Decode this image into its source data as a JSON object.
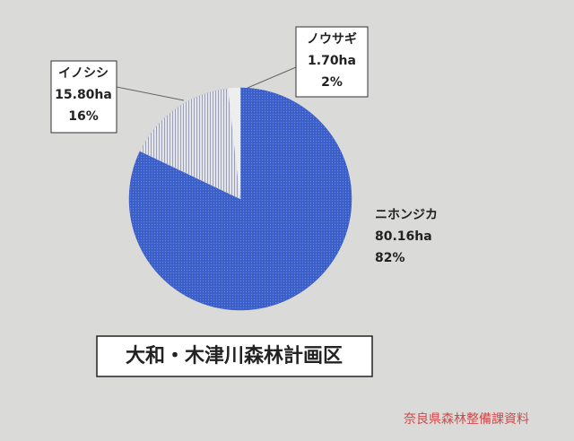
{
  "chart_data": {
    "type": "pie",
    "title": "大和・木津川森林計画区",
    "categories": [
      "ニホンジカ",
      "イノシシ",
      "ノウサギ"
    ],
    "values": [
      80.16,
      15.8,
      1.7
    ],
    "value_labels": [
      "80.16ha",
      "15.80ha",
      "1.70ha"
    ],
    "percentages": [
      82,
      16,
      2
    ],
    "percentage_labels": [
      "82%",
      "16%",
      "2%"
    ],
    "colors": [
      "#3b5fc9",
      "#c9ccd6",
      "#eeeeee"
    ]
  },
  "source": "奈良県森林整備課資料"
}
